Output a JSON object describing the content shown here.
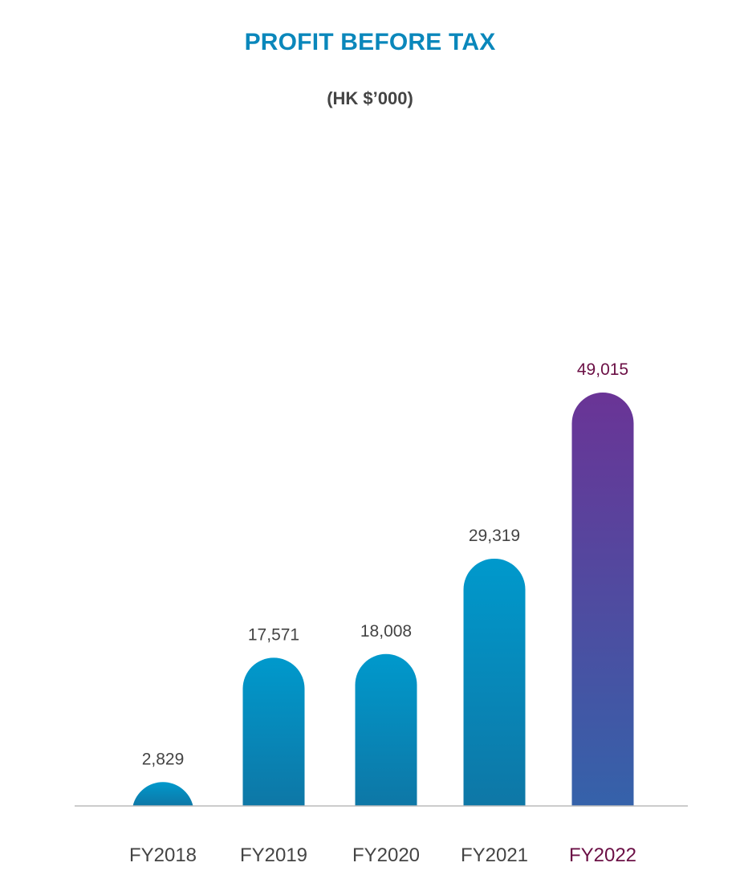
{
  "chart_data": {
    "type": "bar",
    "title": "PROFIT BEFORE TAX",
    "subtitle": "(HK $’000)",
    "categories": [
      "FY2018",
      "FY2019",
      "FY2020",
      "FY2021",
      "FY2022"
    ],
    "values": [
      2829,
      17571,
      18008,
      29319,
      49015
    ],
    "value_labels": [
      "2,829",
      "17,571",
      "18,008",
      "29,319",
      "49,015"
    ],
    "highlight_category": "FY2022",
    "xlabel": "",
    "ylabel": "",
    "ylim": [
      0,
      50000
    ],
    "grid": false,
    "legend": "none"
  },
  "colors": {
    "title": "#0a87bb",
    "subtitle": "#444444",
    "bar_top": "#0099cc",
    "bar_bottom": "#0e77a6",
    "highlight_top": "#6a3496",
    "highlight_bottom": "#3562aa",
    "label": "#444444",
    "highlight_label": "#6b0f45",
    "baseline": "#bbbbbb"
  }
}
